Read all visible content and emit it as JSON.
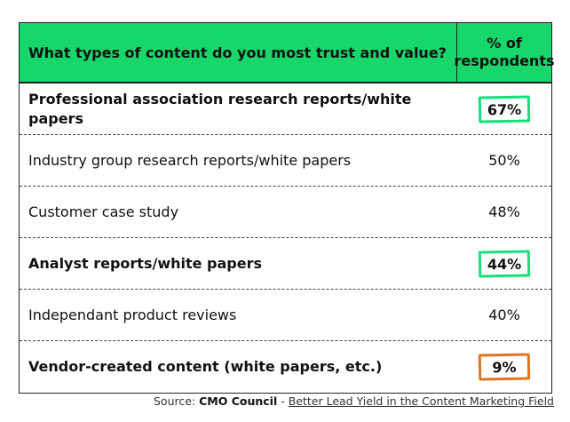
{
  "chart_data": {
    "type": "table",
    "columns": [
      "What types of content do you most trust and value?",
      "% of respondents"
    ],
    "rows": [
      {
        "label": "Professional association research reports/white papers",
        "value": "67%",
        "highlight": "green"
      },
      {
        "label": "Industry group research reports/white papers",
        "value": "50%",
        "highlight": ""
      },
      {
        "label": "Customer case study",
        "value": "48%",
        "highlight": ""
      },
      {
        "label": "Analyst reports/white papers",
        "value": "44%",
        "highlight": "green"
      },
      {
        "label": "Independant product reviews",
        "value": "40%",
        "highlight": ""
      },
      {
        "label": "Vendor-created content (white papers, etc.)",
        "value": "9%",
        "highlight": "orange"
      }
    ],
    "colors": {
      "header": "#17d66a",
      "green_box": "#17e07a",
      "orange_box": "#e07420"
    }
  },
  "source": {
    "prefix": "Source: ",
    "org": "CMO Council",
    "sep": " - ",
    "title": "Better Lead Yield in the Content Marketing Field"
  }
}
